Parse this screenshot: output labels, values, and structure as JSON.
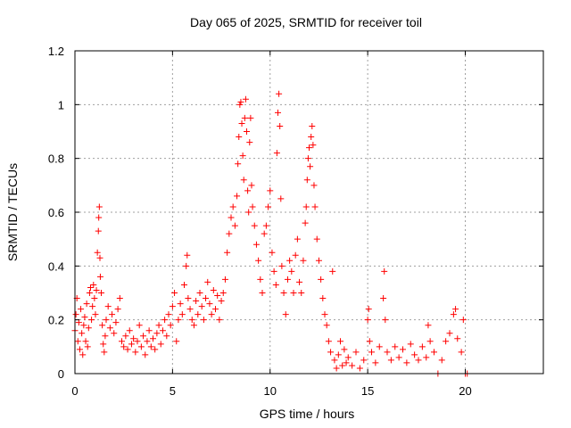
{
  "chart_data": {
    "type": "scatter",
    "title": "Day 065 of 2025, SRMTID for receiver toil",
    "xlabel": "GPS time / hours",
    "ylabel": "SRMTID / TECUs",
    "xlim": [
      0,
      24
    ],
    "ylim": [
      0,
      1.2
    ],
    "xticks": [
      0,
      5,
      10,
      15,
      20
    ],
    "xtick_labels": [
      "0",
      "5",
      "10",
      "15",
      "20"
    ],
    "yticks": [
      0,
      0.2,
      0.4,
      0.6,
      0.8,
      1.0,
      1.2
    ],
    "ytick_labels": [
      "0",
      "0.2",
      "0.4",
      "0.6",
      "0.8",
      "1",
      "1.2"
    ],
    "grid": true,
    "marker": "+",
    "color": "#ff0000",
    "series": [
      {
        "name": "SRMTID",
        "points": [
          [
            0.0,
            0.16
          ],
          [
            0.05,
            0.22
          ],
          [
            0.1,
            0.28
          ],
          [
            0.15,
            0.12
          ],
          [
            0.2,
            0.19
          ],
          [
            0.25,
            0.09
          ],
          [
            0.3,
            0.24
          ],
          [
            0.35,
            0.15
          ],
          [
            0.4,
            0.07
          ],
          [
            0.45,
            0.18
          ],
          [
            0.5,
            0.21
          ],
          [
            0.55,
            0.12
          ],
          [
            0.6,
            0.26
          ],
          [
            0.65,
            0.1
          ],
          [
            0.7,
            0.17
          ],
          [
            0.75,
            0.3
          ],
          [
            0.8,
            0.32
          ],
          [
            0.85,
            0.2
          ],
          [
            0.9,
            0.25
          ],
          [
            0.95,
            0.33
          ],
          [
            1.0,
            0.28
          ],
          [
            1.05,
            0.22
          ],
          [
            1.1,
            0.31
          ],
          [
            1.15,
            0.45
          ],
          [
            1.2,
            0.53
          ],
          [
            1.22,
            0.58
          ],
          [
            1.25,
            0.62
          ],
          [
            1.28,
            0.43
          ],
          [
            1.3,
            0.36
          ],
          [
            1.35,
            0.3
          ],
          [
            1.4,
            0.18
          ],
          [
            1.45,
            0.11
          ],
          [
            1.5,
            0.08
          ],
          [
            1.55,
            0.14
          ],
          [
            1.6,
            0.2
          ],
          [
            1.7,
            0.25
          ],
          [
            1.8,
            0.17
          ],
          [
            1.9,
            0.22
          ],
          [
            2.0,
            0.15
          ],
          [
            2.1,
            0.19
          ],
          [
            2.2,
            0.24
          ],
          [
            2.3,
            0.28
          ],
          [
            2.4,
            0.12
          ],
          [
            2.5,
            0.1
          ],
          [
            2.6,
            0.14
          ],
          [
            2.7,
            0.09
          ],
          [
            2.8,
            0.16
          ],
          [
            2.9,
            0.11
          ],
          [
            3.0,
            0.13
          ],
          [
            3.1,
            0.08
          ],
          [
            3.2,
            0.12
          ],
          [
            3.3,
            0.18
          ],
          [
            3.4,
            0.1
          ],
          [
            3.5,
            0.14
          ],
          [
            3.6,
            0.07
          ],
          [
            3.7,
            0.12
          ],
          [
            3.8,
            0.16
          ],
          [
            3.9,
            0.1
          ],
          [
            4.0,
            0.13
          ],
          [
            4.1,
            0.09
          ],
          [
            4.2,
            0.15
          ],
          [
            4.3,
            0.18
          ],
          [
            4.4,
            0.11
          ],
          [
            4.5,
            0.16
          ],
          [
            4.6,
            0.2
          ],
          [
            4.7,
            0.14
          ],
          [
            4.8,
            0.22
          ],
          [
            4.9,
            0.18
          ],
          [
            5.0,
            0.25
          ],
          [
            5.1,
            0.3
          ],
          [
            5.2,
            0.12
          ],
          [
            5.3,
            0.2
          ],
          [
            5.4,
            0.26
          ],
          [
            5.5,
            0.22
          ],
          [
            5.6,
            0.33
          ],
          [
            5.7,
            0.4
          ],
          [
            5.75,
            0.44
          ],
          [
            5.8,
            0.28
          ],
          [
            5.9,
            0.24
          ],
          [
            6.0,
            0.2
          ],
          [
            6.1,
            0.18
          ],
          [
            6.2,
            0.27
          ],
          [
            6.3,
            0.22
          ],
          [
            6.4,
            0.3
          ],
          [
            6.5,
            0.25
          ],
          [
            6.6,
            0.2
          ],
          [
            6.7,
            0.28
          ],
          [
            6.8,
            0.34
          ],
          [
            6.9,
            0.26
          ],
          [
            7.0,
            0.22
          ],
          [
            7.1,
            0.31
          ],
          [
            7.2,
            0.24
          ],
          [
            7.3,
            0.29
          ],
          [
            7.4,
            0.2
          ],
          [
            7.5,
            0.27
          ],
          [
            7.6,
            0.3
          ],
          [
            7.7,
            0.35
          ],
          [
            7.8,
            0.45
          ],
          [
            7.9,
            0.52
          ],
          [
            8.0,
            0.58
          ],
          [
            8.1,
            0.62
          ],
          [
            8.2,
            0.55
          ],
          [
            8.3,
            0.66
          ],
          [
            8.35,
            0.78
          ],
          [
            8.4,
            0.88
          ],
          [
            8.45,
            1.0
          ],
          [
            8.5,
            1.01
          ],
          [
            8.55,
            0.93
          ],
          [
            8.6,
            0.81
          ],
          [
            8.65,
            0.72
          ],
          [
            8.7,
            0.95
          ],
          [
            8.75,
            1.02
          ],
          [
            8.8,
            0.9
          ],
          [
            8.85,
            0.68
          ],
          [
            8.9,
            0.6
          ],
          [
            8.95,
            0.86
          ],
          [
            9.0,
            0.95
          ],
          [
            9.05,
            0.7
          ],
          [
            9.1,
            0.62
          ],
          [
            9.2,
            0.55
          ],
          [
            9.3,
            0.48
          ],
          [
            9.4,
            0.42
          ],
          [
            9.5,
            0.35
          ],
          [
            9.6,
            0.3
          ],
          [
            9.7,
            0.52
          ],
          [
            9.8,
            0.55
          ],
          [
            9.9,
            0.62
          ],
          [
            10.0,
            0.68
          ],
          [
            10.1,
            0.45
          ],
          [
            10.2,
            0.38
          ],
          [
            10.3,
            0.33
          ],
          [
            10.35,
            0.82
          ],
          [
            10.4,
            0.97
          ],
          [
            10.45,
            1.04
          ],
          [
            10.5,
            0.92
          ],
          [
            10.55,
            0.65
          ],
          [
            10.6,
            0.4
          ],
          [
            10.7,
            0.3
          ],
          [
            10.8,
            0.22
          ],
          [
            10.9,
            0.35
          ],
          [
            11.0,
            0.42
          ],
          [
            11.1,
            0.38
          ],
          [
            11.2,
            0.3
          ],
          [
            11.3,
            0.44
          ],
          [
            11.4,
            0.5
          ],
          [
            11.5,
            0.34
          ],
          [
            11.6,
            0.3
          ],
          [
            11.7,
            0.42
          ],
          [
            11.8,
            0.56
          ],
          [
            11.85,
            0.62
          ],
          [
            11.9,
            0.72
          ],
          [
            11.95,
            0.8
          ],
          [
            12.0,
            0.84
          ],
          [
            12.05,
            0.77
          ],
          [
            12.1,
            0.88
          ],
          [
            12.15,
            0.92
          ],
          [
            12.2,
            0.85
          ],
          [
            12.25,
            0.7
          ],
          [
            12.3,
            0.62
          ],
          [
            12.4,
            0.5
          ],
          [
            12.5,
            0.42
          ],
          [
            12.6,
            0.35
          ],
          [
            12.7,
            0.28
          ],
          [
            12.8,
            0.22
          ],
          [
            12.9,
            0.18
          ],
          [
            13.0,
            0.12
          ],
          [
            13.1,
            0.08
          ],
          [
            13.2,
            0.38
          ],
          [
            13.3,
            0.05
          ],
          [
            13.4,
            0.02
          ],
          [
            13.5,
            0.07
          ],
          [
            13.6,
            0.12
          ],
          [
            13.7,
            0.03
          ],
          [
            13.8,
            0.09
          ],
          [
            13.9,
            0.04
          ],
          [
            14.0,
            0.06
          ],
          [
            14.2,
            0.03
          ],
          [
            14.4,
            0.08
          ],
          [
            14.6,
            0.02
          ],
          [
            14.8,
            0.05
          ],
          [
            15.0,
            0.2
          ],
          [
            15.05,
            0.24
          ],
          [
            15.1,
            0.12
          ],
          [
            15.2,
            0.08
          ],
          [
            15.4,
            0.04
          ],
          [
            15.6,
            0.1
          ],
          [
            15.8,
            0.28
          ],
          [
            15.85,
            0.38
          ],
          [
            15.9,
            0.2
          ],
          [
            16.0,
            0.08
          ],
          [
            16.2,
            0.05
          ],
          [
            16.4,
            0.1
          ],
          [
            16.6,
            0.06
          ],
          [
            16.8,
            0.09
          ],
          [
            17.0,
            0.04
          ],
          [
            17.2,
            0.11
          ],
          [
            17.4,
            0.07
          ],
          [
            17.6,
            0.05
          ],
          [
            17.8,
            0.1
          ],
          [
            18.0,
            0.06
          ],
          [
            18.1,
            0.18
          ],
          [
            18.2,
            0.12
          ],
          [
            18.4,
            0.08
          ],
          [
            18.6,
            0.0
          ],
          [
            18.8,
            0.05
          ],
          [
            19.0,
            0.12
          ],
          [
            19.2,
            0.15
          ],
          [
            19.4,
            0.22
          ],
          [
            19.5,
            0.24
          ],
          [
            19.6,
            0.13
          ],
          [
            19.8,
            0.08
          ],
          [
            19.9,
            0.2
          ],
          [
            20.0,
            0.0
          ],
          [
            20.1,
            0.0
          ]
        ]
      }
    ]
  }
}
